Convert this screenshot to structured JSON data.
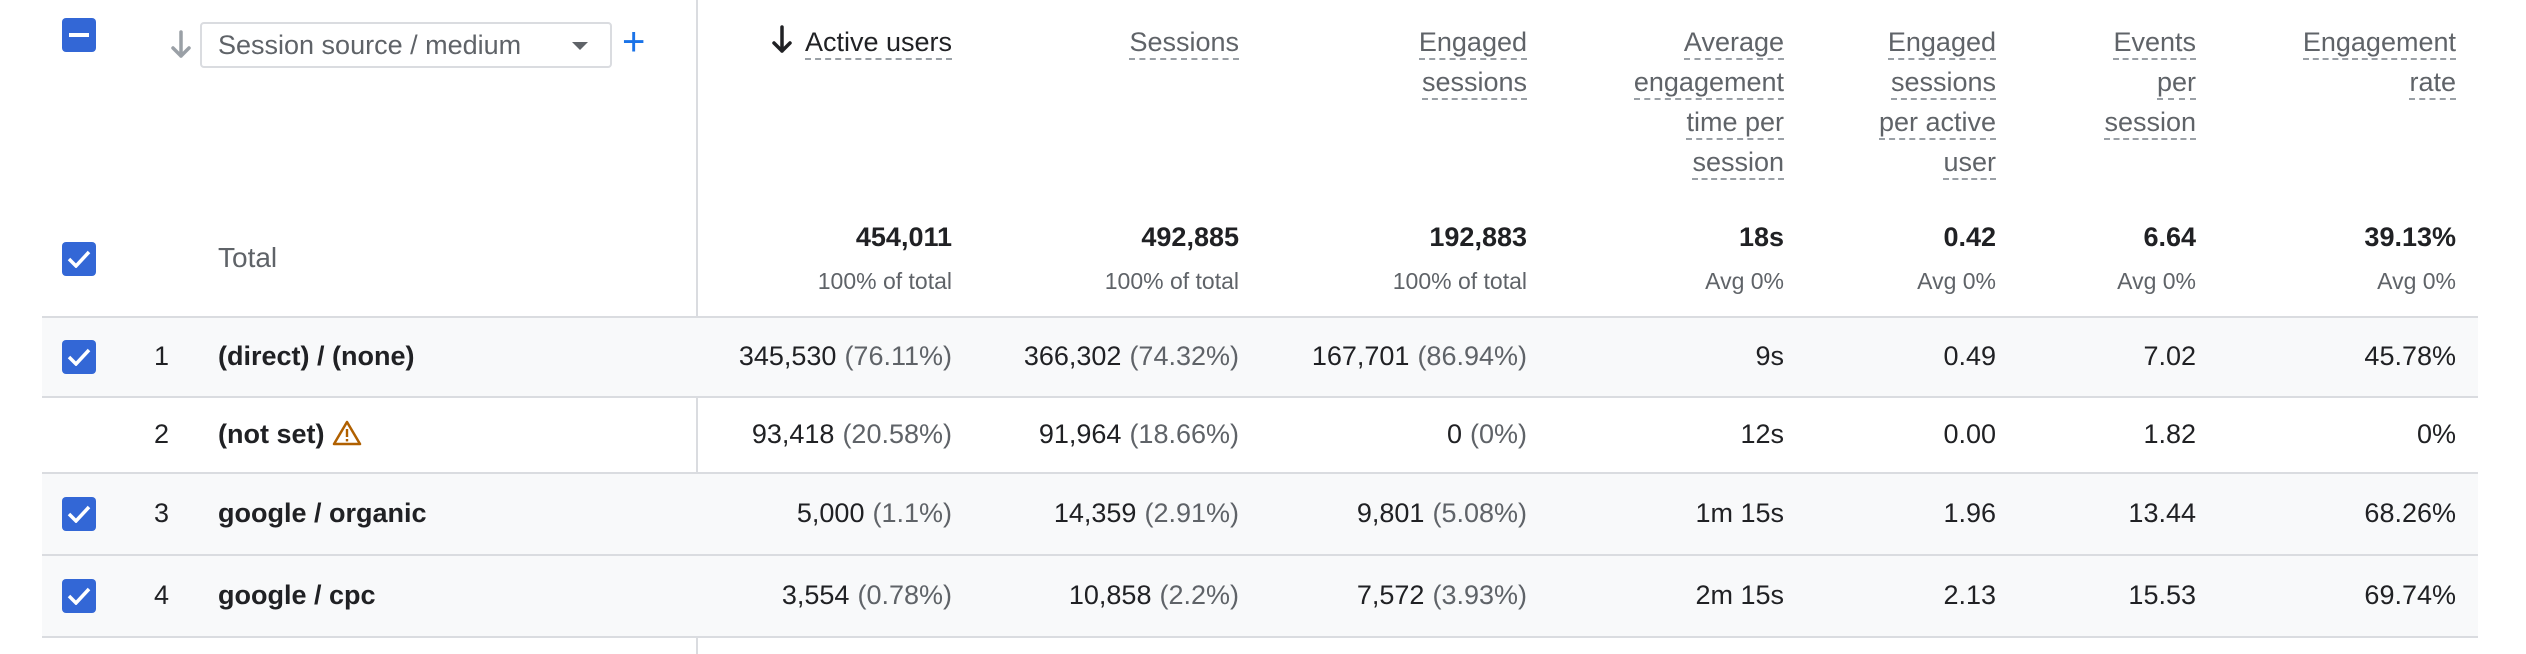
{
  "dimension": {
    "select_label": "Session source / medium",
    "add_label": "+"
  },
  "columns": [
    {
      "key": "active_users",
      "label": "Active users",
      "sorted": true
    },
    {
      "key": "sessions",
      "label": "Sessions"
    },
    {
      "key": "engaged_sessions",
      "label": "Engaged sessions"
    },
    {
      "key": "avg_engagement_time",
      "label": "Average engagement time per session"
    },
    {
      "key": "engaged_per_user",
      "label": "Engaged sessions per active user"
    },
    {
      "key": "events_per_session",
      "label": "Events per session"
    },
    {
      "key": "engagement_rate",
      "label": "Engagement rate"
    }
  ],
  "header_lines": {
    "active_users": [
      "Active users"
    ],
    "sessions": [
      "Sessions"
    ],
    "engaged_sessions": [
      "Engaged",
      "sessions"
    ],
    "avg_engagement_time": [
      "Average",
      "engagement",
      "time per",
      "session"
    ],
    "engaged_per_user": [
      "Engaged",
      "sessions",
      "per active",
      "user"
    ],
    "events_per_session": [
      "Events",
      "per",
      "session"
    ],
    "engagement_rate": [
      "Engagement",
      "rate"
    ]
  },
  "total": {
    "label": "Total",
    "values": [
      "454,011",
      "492,885",
      "192,883",
      "18s",
      "0.42",
      "6.64",
      "39.13%"
    ],
    "subs": [
      "100% of total",
      "100% of total",
      "100% of total",
      "Avg 0%",
      "Avg 0%",
      "Avg 0%",
      "Avg 0%"
    ]
  },
  "rows": [
    {
      "num": "1",
      "name": "(direct) / (none)",
      "checked": true,
      "warning": false,
      "cells": [
        [
          "345,530",
          "(76.11%)"
        ],
        [
          "366,302",
          "(74.32%)"
        ],
        [
          "167,701",
          "(86.94%)"
        ],
        [
          "9s",
          ""
        ],
        [
          "0.49",
          ""
        ],
        [
          "7.02",
          ""
        ],
        [
          "45.78%",
          ""
        ]
      ]
    },
    {
      "num": "2",
      "name": "(not set)",
      "checked": false,
      "warning": true,
      "cells": [
        [
          "93,418",
          "(20.58%)"
        ],
        [
          "91,964",
          "(18.66%)"
        ],
        [
          "0",
          "(0%)"
        ],
        [
          "12s",
          ""
        ],
        [
          "0.00",
          ""
        ],
        [
          "1.82",
          ""
        ],
        [
          "0%",
          ""
        ]
      ]
    },
    {
      "num": "3",
      "name": "google / organic",
      "checked": true,
      "warning": false,
      "cells": [
        [
          "5,000",
          "(1.1%)"
        ],
        [
          "14,359",
          "(2.91%)"
        ],
        [
          "9,801",
          "(5.08%)"
        ],
        [
          "1m 15s",
          ""
        ],
        [
          "1.96",
          ""
        ],
        [
          "13.44",
          ""
        ],
        [
          "68.26%",
          ""
        ]
      ]
    },
    {
      "num": "4",
      "name": "google / cpc",
      "checked": true,
      "warning": false,
      "cells": [
        [
          "3,554",
          "(0.78%)"
        ],
        [
          "10,858",
          "(2.2%)"
        ],
        [
          "7,572",
          "(3.93%)"
        ],
        [
          "2m 15s",
          ""
        ],
        [
          "2.13",
          ""
        ],
        [
          "15.53",
          ""
        ],
        [
          "69.74%",
          ""
        ]
      ]
    }
  ],
  "colors": {
    "accent": "#3367d6",
    "warning": "#b06000",
    "row_shade": "#f8f9fa",
    "divider": "#dadce0"
  }
}
